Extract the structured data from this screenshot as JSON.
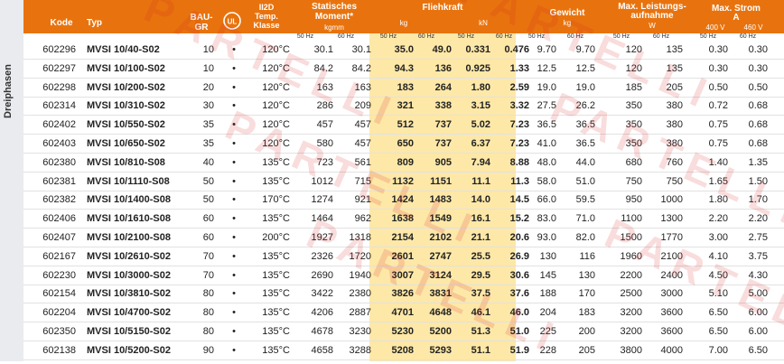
{
  "side_label": "Dreiphasen",
  "headers": {
    "code": "Kode",
    "typ": "Typ",
    "bau_line1": "BAU-",
    "bau_line2": "GR",
    "temp_line1": "II2D",
    "temp_line2": "Temp.",
    "temp_line3": "Klasse",
    "moment_line1": "Statisches",
    "moment_line2": "Moment*",
    "moment_unit": "kgmm",
    "fliehkraft": "Fliehkraft",
    "unit_kg": "kg",
    "unit_kn": "kN",
    "gewicht": "Gewicht",
    "gewicht_unit": "kg",
    "leistung_line1": "Max. Leistungs-",
    "leistung_line2": "aufnahme",
    "leistung_unit": "W",
    "strom_line1": "Max. Strom",
    "strom_line2": "A",
    "v400": "400 V",
    "v460": "460 V",
    "hz50": "50 Hz",
    "hz60": "60 Hz"
  },
  "watermark_text": "PARTELLI",
  "colors": {
    "header_bg": "#e8730e",
    "highlight": "#fde8a8",
    "watermark": "#dc2828"
  },
  "rows": [
    {
      "code": "602296",
      "typ": "MVSI 10/40-S02",
      "bau": "10",
      "dot": "•",
      "temp": "120°C",
      "m50": "30.1",
      "m60": "30.1",
      "kg50": "35.0",
      "kg60": "49.0",
      "kn50": "0.331",
      "kn60": "0.476",
      "g50": "9.70",
      "g60": "9.70",
      "p50": "120",
      "p60": "135",
      "s400": "0.30",
      "s460": "0.30"
    },
    {
      "code": "602297",
      "typ": "MVSI 10/100-S02",
      "bau": "10",
      "dot": "•",
      "temp": "120°C",
      "m50": "84.2",
      "m60": "84.2",
      "kg50": "94.3",
      "kg60": "136",
      "kn50": "0.925",
      "kn60": "1.33",
      "g50": "12.5",
      "g60": "12.5",
      "p50": "120",
      "p60": "135",
      "s400": "0.30",
      "s460": "0.30"
    },
    {
      "code": "602298",
      "typ": "MVSI 10/200-S02",
      "bau": "20",
      "dot": "•",
      "temp": "120°C",
      "m50": "163",
      "m60": "163",
      "kg50": "183",
      "kg60": "264",
      "kn50": "1.80",
      "kn60": "2.59",
      "g50": "19.0",
      "g60": "19.0",
      "p50": "185",
      "p60": "205",
      "s400": "0.50",
      "s460": "0.50"
    },
    {
      "code": "602314",
      "typ": "MVSI 10/310-S02",
      "bau": "30",
      "dot": "•",
      "temp": "120°C",
      "m50": "286",
      "m60": "209",
      "kg50": "321",
      "kg60": "338",
      "kn50": "3.15",
      "kn60": "3.32",
      "g50": "27.5",
      "g60": "26.2",
      "p50": "350",
      "p60": "380",
      "s400": "0.72",
      "s460": "0.68"
    },
    {
      "code": "602402",
      "typ": "MVSI 10/550-S02",
      "bau": "35",
      "dot": "•",
      "temp": "120°C",
      "m50": "457",
      "m60": "457",
      "kg50": "512",
      "kg60": "737",
      "kn50": "5.02",
      "kn60": "7.23",
      "g50": "36.5",
      "g60": "36.5",
      "p50": "350",
      "p60": "380",
      "s400": "0.75",
      "s460": "0.68"
    },
    {
      "code": "602403",
      "typ": "MVSI 10/650-S02",
      "bau": "35",
      "dot": "•",
      "temp": "120°C",
      "m50": "580",
      "m60": "457",
      "kg50": "650",
      "kg60": "737",
      "kn50": "6.37",
      "kn60": "7.23",
      "g50": "41.0",
      "g60": "36.5",
      "p50": "350",
      "p60": "380",
      "s400": "0.75",
      "s460": "0.68"
    },
    {
      "code": "602380",
      "typ": "MVSI 10/810-S08",
      "bau": "40",
      "dot": "•",
      "temp": "135°C",
      "m50": "723",
      "m60": "561",
      "kg50": "809",
      "kg60": "905",
      "kn50": "7.94",
      "kn60": "8.88",
      "g50": "48.0",
      "g60": "44.0",
      "p50": "680",
      "p60": "760",
      "s400": "1.40",
      "s460": "1.35"
    },
    {
      "code": "602381",
      "typ": "MVSI 10/1110-S08",
      "bau": "50",
      "dot": "•",
      "temp": "135°C",
      "m50": "1012",
      "m60": "715",
      "kg50": "1132",
      "kg60": "1151",
      "kn50": "11.1",
      "kn60": "11.3",
      "g50": "58.0",
      "g60": "51.0",
      "p50": "750",
      "p60": "750",
      "s400": "1.65",
      "s460": "1.50"
    },
    {
      "code": "602382",
      "typ": "MVSI 10/1400-S08",
      "bau": "50",
      "dot": "•",
      "temp": "170°C",
      "m50": "1274",
      "m60": "921",
      "kg50": "1424",
      "kg60": "1483",
      "kn50": "14.0",
      "kn60": "14.5",
      "g50": "66.0",
      "g60": "59.5",
      "p50": "950",
      "p60": "1000",
      "s400": "1.80",
      "s460": "1.70"
    },
    {
      "code": "602406",
      "typ": "MVSI 10/1610-S08",
      "bau": "60",
      "dot": "•",
      "temp": "135°C",
      "m50": "1464",
      "m60": "962",
      "kg50": "1638",
      "kg60": "1549",
      "kn50": "16.1",
      "kn60": "15.2",
      "g50": "83.0",
      "g60": "71.0",
      "p50": "1100",
      "p60": "1300",
      "s400": "2.20",
      "s460": "2.20"
    },
    {
      "code": "602407",
      "typ": "MVSI 10/2100-S08",
      "bau": "60",
      "dot": "•",
      "temp": "200°C",
      "m50": "1927",
      "m60": "1318",
      "kg50": "2154",
      "kg60": "2102",
      "kn50": "21.1",
      "kn60": "20.6",
      "g50": "93.0",
      "g60": "82.0",
      "p50": "1500",
      "p60": "1770",
      "s400": "3.00",
      "s460": "2.75"
    },
    {
      "code": "602167",
      "typ": "MVSI 10/2610-S02",
      "bau": "70",
      "dot": "•",
      "temp": "135°C",
      "m50": "2326",
      "m60": "1720",
      "kg50": "2601",
      "kg60": "2747",
      "kn50": "25.5",
      "kn60": "26.9",
      "g50": "130",
      "g60": "116",
      "p50": "1960",
      "p60": "2100",
      "s400": "4.10",
      "s460": "3.75"
    },
    {
      "code": "602230",
      "typ": "MVSI 10/3000-S02",
      "bau": "70",
      "dot": "•",
      "temp": "135°C",
      "m50": "2690",
      "m60": "1940",
      "kg50": "3007",
      "kg60": "3124",
      "kn50": "29.5",
      "kn60": "30.6",
      "g50": "145",
      "g60": "130",
      "p50": "2200",
      "p60": "2400",
      "s400": "4.50",
      "s460": "4.30"
    },
    {
      "code": "602154",
      "typ": "MVSI 10/3810-S02",
      "bau": "80",
      "dot": "•",
      "temp": "135°C",
      "m50": "3422",
      "m60": "2380",
      "kg50": "3826",
      "kg60": "3831",
      "kn50": "37.5",
      "kn60": "37.6",
      "g50": "188",
      "g60": "170",
      "p50": "2500",
      "p60": "3000",
      "s400": "5.10",
      "s460": "5.00"
    },
    {
      "code": "602204",
      "typ": "MVSI 10/4700-S02",
      "bau": "80",
      "dot": "•",
      "temp": "135°C",
      "m50": "4206",
      "m60": "2887",
      "kg50": "4701",
      "kg60": "4648",
      "kn50": "46.1",
      "kn60": "46.0",
      "g50": "204",
      "g60": "183",
      "p50": "3200",
      "p60": "3600",
      "s400": "6.50",
      "s460": "6.00"
    },
    {
      "code": "602350",
      "typ": "MVSI 10/5150-S02",
      "bau": "80",
      "dot": "•",
      "temp": "135°C",
      "m50": "4678",
      "m60": "3230",
      "kg50": "5230",
      "kg60": "5200",
      "kn50": "51.3",
      "kn60": "51.0",
      "g50": "225",
      "g60": "200",
      "p50": "3200",
      "p60": "3600",
      "s400": "6.50",
      "s460": "6.00"
    },
    {
      "code": "602138",
      "typ": "MVSI 10/5200-S02",
      "bau": "90",
      "dot": "•",
      "temp": "135°C",
      "m50": "4658",
      "m60": "3288",
      "kg50": "5208",
      "kg60": "5293",
      "kn50": "51.1",
      "kn60": "51.9",
      "g50": "228",
      "g60": "205",
      "p50": "3800",
      "p60": "4000",
      "s400": "7.00",
      "s460": "6.50"
    }
  ]
}
